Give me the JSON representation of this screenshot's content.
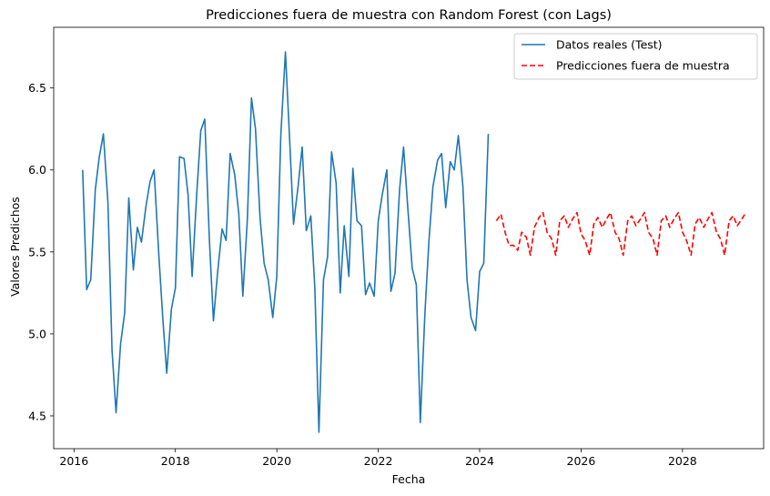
{
  "chart_data": {
    "type": "line",
    "title": "Predicciones fuera de muestra con Random Forest (con Lags)",
    "xlabel": "Fecha",
    "ylabel": "Valores Predichos",
    "xlim": [
      2015.6,
      2029.6
    ],
    "ylim": [
      4.3,
      6.87
    ],
    "x_ticks": [
      2016,
      2018,
      2020,
      2022,
      2024,
      2026,
      2028
    ],
    "y_ticks": [
      4.5,
      5.0,
      5.5,
      6.0,
      6.5
    ],
    "legend_position": "top-right",
    "grid": false,
    "series": [
      {
        "name": "Datos reales (Test)",
        "color": "#1f77b4",
        "style": "solid",
        "x": [
          2016.17,
          2016.25,
          2016.33,
          2016.42,
          2016.5,
          2016.58,
          2016.67,
          2016.75,
          2016.83,
          2016.92,
          2017.0,
          2017.08,
          2017.17,
          2017.25,
          2017.33,
          2017.42,
          2017.5,
          2017.58,
          2017.67,
          2017.75,
          2017.83,
          2017.92,
          2018.0,
          2018.08,
          2018.17,
          2018.25,
          2018.33,
          2018.42,
          2018.5,
          2018.58,
          2018.67,
          2018.75,
          2018.83,
          2018.92,
          2019.0,
          2019.08,
          2019.17,
          2019.25,
          2019.33,
          2019.42,
          2019.5,
          2019.58,
          2019.67,
          2019.75,
          2019.83,
          2019.92,
          2020.0,
          2020.08,
          2020.17,
          2020.25,
          2020.33,
          2020.42,
          2020.5,
          2020.58,
          2020.67,
          2020.75,
          2020.83,
          2020.92,
          2021.0,
          2021.08,
          2021.17,
          2021.25,
          2021.33,
          2021.42,
          2021.5,
          2021.58,
          2021.67,
          2021.75,
          2021.83,
          2021.92,
          2022.0,
          2022.08,
          2022.17,
          2022.25,
          2022.33,
          2022.42,
          2022.5,
          2022.58,
          2022.67,
          2022.75,
          2022.83,
          2022.92,
          2023.0,
          2023.08,
          2023.17,
          2023.25,
          2023.33,
          2023.42,
          2023.5,
          2023.58,
          2023.67,
          2023.75,
          2023.83,
          2023.92,
          2024.0,
          2024.08,
          2024.17
        ],
        "values": [
          6.0,
          5.27,
          5.33,
          5.88,
          6.08,
          6.22,
          5.8,
          4.9,
          4.52,
          4.94,
          5.13,
          5.83,
          5.39,
          5.65,
          5.56,
          5.78,
          5.93,
          6.0,
          5.5,
          5.1,
          4.76,
          5.15,
          5.28,
          6.08,
          6.07,
          5.85,
          5.35,
          5.85,
          6.24,
          6.31,
          5.58,
          5.08,
          5.37,
          5.64,
          5.57,
          6.1,
          5.97,
          5.73,
          5.23,
          5.7,
          6.44,
          6.25,
          5.7,
          5.43,
          5.33,
          5.1,
          5.35,
          6.22,
          6.72,
          6.2,
          5.67,
          5.9,
          6.14,
          5.63,
          5.72,
          5.28,
          4.4,
          5.33,
          5.47,
          6.11,
          5.92,
          5.25,
          5.66,
          5.35,
          6.01,
          5.69,
          5.66,
          5.24,
          5.31,
          5.23,
          5.69,
          5.85,
          6.0,
          5.26,
          5.37,
          5.88,
          6.14,
          5.78,
          5.4,
          5.3,
          4.46,
          5.12,
          5.57,
          5.9,
          6.06,
          6.1,
          5.77,
          6.05,
          6.0,
          6.21,
          5.9,
          5.33,
          5.1,
          5.02,
          5.38,
          5.43,
          6.22
        ]
      },
      {
        "name": "Predicciones fuera de muestra",
        "color": "#ff0000",
        "style": "dashed",
        "x": [
          2024.33,
          2024.42,
          2024.5,
          2024.58,
          2024.67,
          2024.75,
          2024.83,
          2024.92,
          2025.0,
          2025.08,
          2025.17,
          2025.25,
          2025.33,
          2025.42,
          2025.5,
          2025.58,
          2025.67,
          2025.75,
          2025.83,
          2025.92,
          2026.0,
          2026.08,
          2026.17,
          2026.25,
          2026.33,
          2026.42,
          2026.5,
          2026.58,
          2026.67,
          2026.75,
          2026.83,
          2026.92,
          2027.0,
          2027.08,
          2027.17,
          2027.25,
          2027.33,
          2027.42,
          2027.5,
          2027.58,
          2027.67,
          2027.75,
          2027.83,
          2027.92,
          2028.0,
          2028.08,
          2028.17,
          2028.25,
          2028.33,
          2028.42,
          2028.5,
          2028.58,
          2028.67,
          2028.75,
          2028.83,
          2028.92,
          2029.0,
          2029.08,
          2029.17,
          2029.25
        ],
        "values": [
          5.69,
          5.73,
          5.62,
          5.54,
          5.54,
          5.51,
          5.62,
          5.59,
          5.48,
          5.65,
          5.71,
          5.74,
          5.62,
          5.58,
          5.48,
          5.69,
          5.72,
          5.65,
          5.7,
          5.74,
          5.61,
          5.57,
          5.48,
          5.67,
          5.71,
          5.65,
          5.7,
          5.74,
          5.62,
          5.58,
          5.48,
          5.69,
          5.72,
          5.66,
          5.7,
          5.74,
          5.62,
          5.58,
          5.48,
          5.69,
          5.72,
          5.65,
          5.7,
          5.74,
          5.62,
          5.57,
          5.48,
          5.67,
          5.71,
          5.65,
          5.7,
          5.74,
          5.62,
          5.58,
          5.48,
          5.69,
          5.72,
          5.66,
          5.7,
          5.74
        ]
      }
    ]
  }
}
